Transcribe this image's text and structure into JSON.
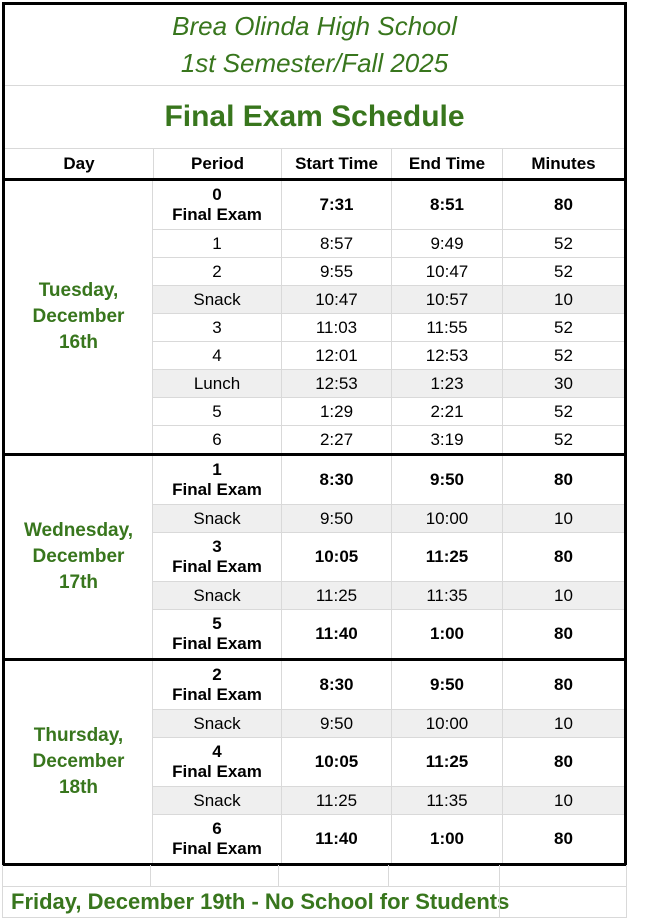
{
  "header": {
    "school": "Brea Olinda High School",
    "semester": "1st Semester/Fall 2025",
    "schedule_title": "Final Exam Schedule"
  },
  "columns": [
    "Day",
    "Period",
    "Start Time",
    "End Time",
    "Minutes"
  ],
  "days": [
    {
      "label_lines": [
        "Tuesday,",
        "December",
        "16th"
      ],
      "rows": [
        {
          "period": "0",
          "period_sub": "Final Exam",
          "start": "7:31",
          "end": "8:51",
          "minutes": "80",
          "type": "exam"
        },
        {
          "period": "1",
          "period_sub": "",
          "start": "8:57",
          "end": "9:49",
          "minutes": "52",
          "type": "regular"
        },
        {
          "period": "2",
          "period_sub": "",
          "start": "9:55",
          "end": "10:47",
          "minutes": "52",
          "type": "regular"
        },
        {
          "period": "Snack",
          "period_sub": "",
          "start": "10:47",
          "end": "10:57",
          "minutes": "10",
          "type": "break"
        },
        {
          "period": "3",
          "period_sub": "",
          "start": "11:03",
          "end": "11:55",
          "minutes": "52",
          "type": "regular"
        },
        {
          "period": "4",
          "period_sub": "",
          "start": "12:01",
          "end": "12:53",
          "minutes": "52",
          "type": "regular"
        },
        {
          "period": "Lunch",
          "period_sub": "",
          "start": "12:53",
          "end": "1:23",
          "minutes": "30",
          "type": "break"
        },
        {
          "period": "5",
          "period_sub": "",
          "start": "1:29",
          "end": "2:21",
          "minutes": "52",
          "type": "regular"
        },
        {
          "period": "6",
          "period_sub": "",
          "start": "2:27",
          "end": "3:19",
          "minutes": "52",
          "type": "regular"
        }
      ]
    },
    {
      "label_lines": [
        "Wednesday,",
        "December",
        "17th"
      ],
      "rows": [
        {
          "period": "1",
          "period_sub": "Final Exam",
          "start": "8:30",
          "end": "9:50",
          "minutes": "80",
          "type": "exam"
        },
        {
          "period": "Snack",
          "period_sub": "",
          "start": "9:50",
          "end": "10:00",
          "minutes": "10",
          "type": "break"
        },
        {
          "period": "3",
          "period_sub": "Final Exam",
          "start": "10:05",
          "end": "11:25",
          "minutes": "80",
          "type": "exam"
        },
        {
          "period": "Snack",
          "period_sub": "",
          "start": "11:25",
          "end": "11:35",
          "minutes": "10",
          "type": "break"
        },
        {
          "period": "5",
          "period_sub": "Final Exam",
          "start": "11:40",
          "end": "1:00",
          "minutes": "80",
          "type": "exam"
        }
      ]
    },
    {
      "label_lines": [
        "Thursday,",
        "December",
        "18th"
      ],
      "rows": [
        {
          "period": "2",
          "period_sub": "Final Exam",
          "start": "8:30",
          "end": "9:50",
          "minutes": "80",
          "type": "exam"
        },
        {
          "period": "Snack",
          "period_sub": "",
          "start": "9:50",
          "end": "10:00",
          "minutes": "10",
          "type": "break"
        },
        {
          "period": "4",
          "period_sub": "Final Exam",
          "start": "10:05",
          "end": "11:25",
          "minutes": "80",
          "type": "exam"
        },
        {
          "period": "Snack",
          "period_sub": "",
          "start": "11:25",
          "end": "11:35",
          "minutes": "10",
          "type": "break"
        },
        {
          "period": "6",
          "period_sub": "Final Exam",
          "start": "11:40",
          "end": "1:00",
          "minutes": "80",
          "type": "exam"
        }
      ]
    }
  ],
  "footer": {
    "note": "Friday, December 19th - No School for Students"
  },
  "colors": {
    "green": "#38761d",
    "break_row_bg": "#efefef",
    "gridline": "#d9d9d9",
    "section_border": "#000000"
  }
}
